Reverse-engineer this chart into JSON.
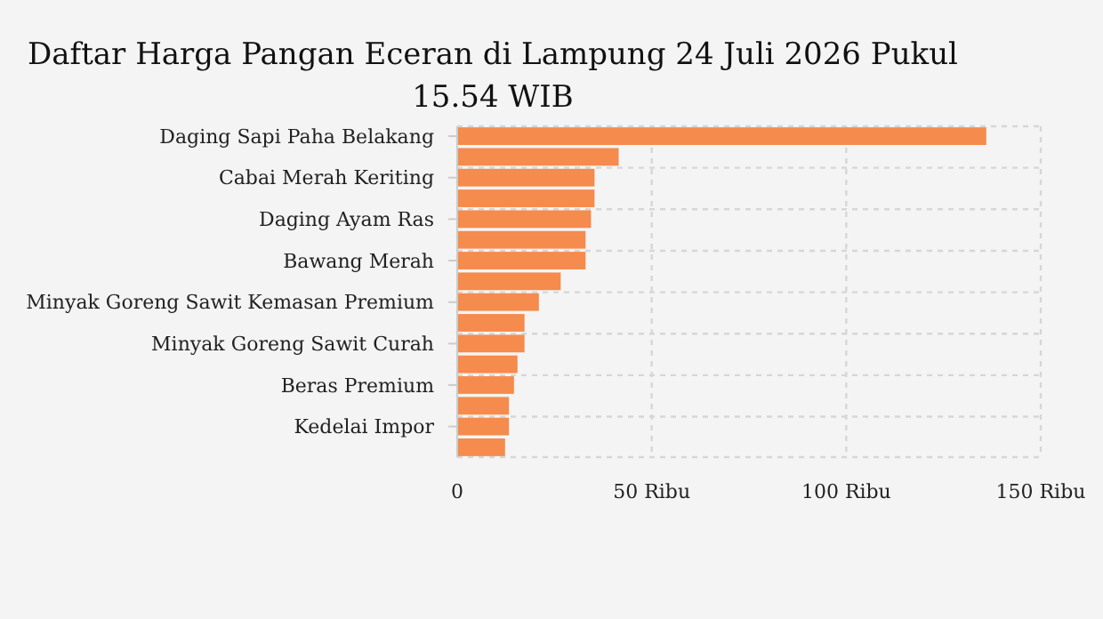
{
  "chart_data": {
    "type": "bar",
    "orientation": "horizontal",
    "title": "Daftar Harga Pangan Eceran di Lampung 24 Juli 2026 Pukul 15.54 WIB",
    "categories": [
      "Daging Sapi Paha Belakang",
      null,
      "Cabai Merah Keriting",
      null,
      "Daging Ayam Ras",
      null,
      "Bawang Merah",
      null,
      "Minyak Goreng Sawit Kemasan Premium",
      null,
      "Minyak Goreng Sawit Curah",
      null,
      "Beras Premium",
      null,
      "Kedelai Impor",
      null
    ],
    "values": [
      136,
      41.5,
      35.3,
      35.3,
      34.4,
      33,
      33,
      26.6,
      21,
      17.3,
      17.3,
      15.5,
      14.6,
      13.3,
      13.3,
      12.3
    ],
    "color": "#f58b4c",
    "xlim": [
      0,
      150
    ],
    "xticks": [
      0,
      {
        "value": 50,
        "label": "50 Ribu"
      },
      {
        "value": 100,
        "label": "100 Ribu"
      },
      {
        "value": 150,
        "label": "150 Ribu"
      }
    ],
    "grid": true
  }
}
